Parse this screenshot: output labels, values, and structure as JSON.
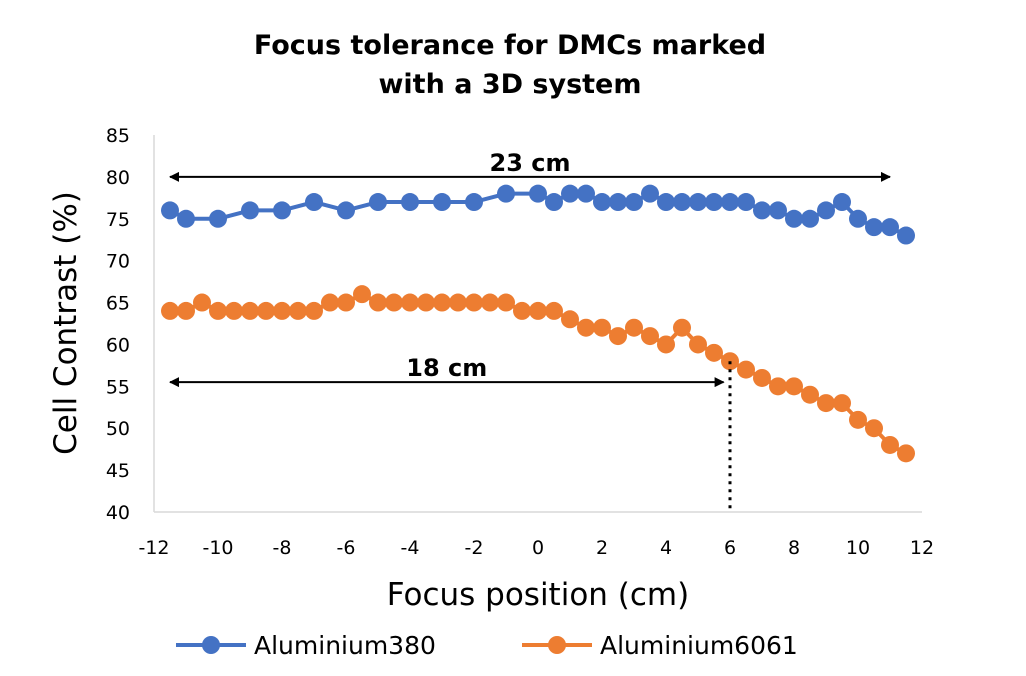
{
  "chart_data": {
    "type": "line",
    "title_lines": [
      "Focus tolerance for DMCs marked",
      "with a 3D system"
    ],
    "xlabel": "Focus position (cm)",
    "ylabel": "Cell Contrast (%)",
    "xlim": [
      -12,
      12
    ],
    "ylim": [
      40,
      85
    ],
    "xticks": [
      "-12",
      "-10",
      "-8",
      "-6",
      "-4",
      "-2",
      "0",
      "2",
      "4",
      "6",
      "8",
      "10",
      "12"
    ],
    "yticks": [
      "40",
      "45",
      "50",
      "55",
      "60",
      "65",
      "70",
      "75",
      "80",
      "85"
    ],
    "grid": false,
    "legend_position": "bottom",
    "series": [
      {
        "name": "Aluminium380",
        "color": "#4472C4",
        "x": [
          -11.5,
          -11,
          -10,
          -9,
          -8,
          -7,
          -6,
          -5,
          -4,
          -3,
          -2,
          -1,
          0,
          0.5,
          1,
          1.5,
          2,
          2.5,
          3,
          3.5,
          4,
          4.5,
          5,
          5.5,
          6,
          6.5,
          7,
          7.5,
          8,
          8.5,
          9,
          9.5,
          10,
          10.5,
          11,
          11.5
        ],
        "y": [
          76,
          75,
          75,
          76,
          76,
          77,
          76,
          77,
          77,
          77,
          77,
          78,
          78,
          77,
          78,
          78,
          77,
          77,
          77,
          78,
          77,
          77,
          77,
          77,
          77,
          77,
          76,
          76,
          75,
          75,
          76,
          77,
          75,
          74,
          74,
          73
        ]
      },
      {
        "name": "Aluminium6061",
        "color": "#ED7D31",
        "x": [
          -11.5,
          -11,
          -10.5,
          -10,
          -9.5,
          -9,
          -8.5,
          -8,
          -7.5,
          -7,
          -6.5,
          -6,
          -5.5,
          -5,
          -4.5,
          -4,
          -3.5,
          -3,
          -2.5,
          -2,
          -1.5,
          -1,
          -0.5,
          0,
          0.5,
          1,
          1.5,
          2,
          2.5,
          3,
          3.5,
          4,
          4.5,
          5,
          5.5,
          6,
          6.5,
          7,
          7.5,
          8,
          8.5,
          9,
          9.5,
          10,
          10.5,
          11,
          11.5
        ],
        "y": [
          64,
          64,
          65,
          64,
          64,
          64,
          64,
          64,
          64,
          64,
          65,
          65,
          66,
          65,
          65,
          65,
          65,
          65,
          65,
          65,
          65,
          65,
          64,
          64,
          64,
          63,
          62,
          62,
          61,
          62,
          61,
          60,
          62,
          60,
          59,
          58,
          57,
          56,
          55,
          55,
          54,
          53,
          53,
          51,
          50,
          48,
          47
        ]
      }
    ],
    "annotations": [
      {
        "label": "23 cm",
        "x_from": -11.5,
        "x_to": 11,
        "y": 80
      },
      {
        "label": "18 cm",
        "x_from": -11.5,
        "x_to": 5.8,
        "y": 55.5
      }
    ],
    "reference_line": {
      "x": 6,
      "y_from": 40,
      "y_to": 58
    }
  }
}
